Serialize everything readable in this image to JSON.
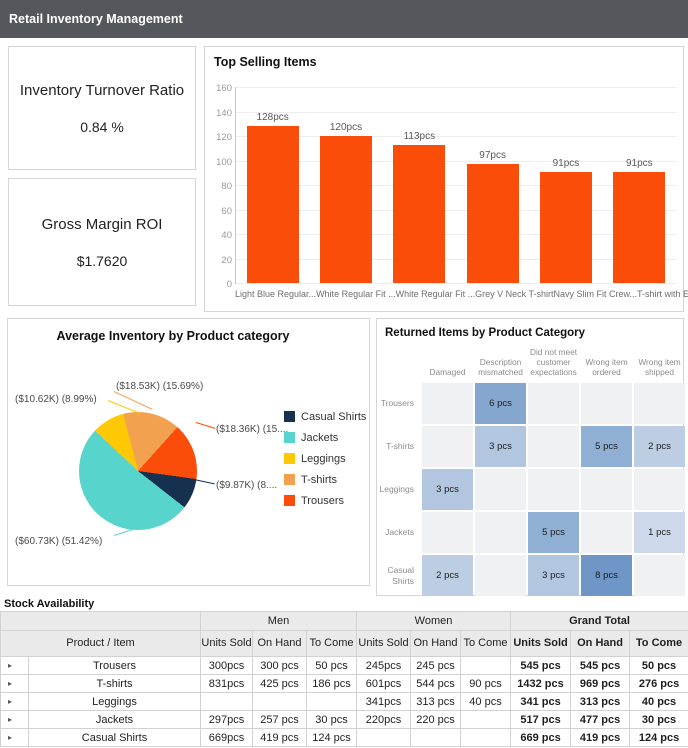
{
  "header": {
    "title": "Retail Inventory Management"
  },
  "colors": {
    "titlebar": "#54585d",
    "panel_border": "#d6d6d6"
  },
  "kpis": [
    {
      "label": "Inventory Turnover Ratio",
      "value": "0.84 %"
    },
    {
      "label": "Gross Margin ROI",
      "value": "$1.7620"
    }
  ],
  "chart_data": [
    {
      "type": "bar",
      "title": "Top Selling Items",
      "categories": [
        "Light Blue Regular...",
        "White Regular Fit ...",
        "White Regular Fit ...",
        "Grey V Neck T-shirt",
        "Navy Slim Fit Crew...",
        "T-shirt with Embro..."
      ],
      "values": [
        128,
        120,
        113,
        97,
        91,
        91
      ],
      "bar_labels": [
        "128pcs",
        "120pcs",
        "113pcs",
        "97pcs",
        "91pcs",
        "91pcs"
      ],
      "yticks": [
        "160",
        "140",
        "120",
        "100",
        "80",
        "60",
        "40",
        "20",
        "0"
      ],
      "ylim": [
        0,
        160
      ],
      "bar_color": "#fb4d0a",
      "grid": true,
      "legend": false
    },
    {
      "type": "pie",
      "title": "Average Inventory by Product category",
      "legend_position": "right",
      "slices": [
        {
          "name": "Casual Shirts",
          "color": "#16304f",
          "amount_label": "($9.87K)",
          "pct": 8.36,
          "callout": "($9.87K) (8...."
        },
        {
          "name": "Jackets",
          "color": "#57d4cb",
          "amount_label": "($60.73K)",
          "pct": 51.42,
          "callout": "($60.73K) (51.42%)"
        },
        {
          "name": "Leggings",
          "color": "#fec804",
          "amount_label": "($10.62K)",
          "pct": 8.99,
          "callout": "($10.62K) (8.99%)"
        },
        {
          "name": "T-shirts",
          "color": "#f2a14f",
          "amount_label": "($18.53K)",
          "pct": 15.69,
          "callout": "($18.53K) (15.69%)"
        },
        {
          "name": "Trousers",
          "color": "#fb4d0a",
          "amount_label": "($18.36K)",
          "pct": 15.54,
          "callout": "($18.36K) (15...."
        }
      ],
      "draw_order": [
        "Jackets",
        "Leggings",
        "T-shirts",
        "Trousers",
        "Casual Shirts"
      ],
      "start_angle_deg": 128
    },
    {
      "type": "heatmap",
      "title": "Returned Items by Product Category",
      "columns": [
        "Damaged",
        "Description mismatched",
        "Did not meet customer expectations",
        "Wrong item ordered",
        "Wrong item shipped"
      ],
      "rows": [
        "Trousers",
        "T-shirts",
        "Leggings",
        "Jackets",
        "Casual Shirts"
      ],
      "cells": [
        {
          "row": 0,
          "col": 1,
          "value": 6,
          "label": "6 pcs"
        },
        {
          "row": 1,
          "col": 1,
          "value": 3,
          "label": "3 pcs"
        },
        {
          "row": 1,
          "col": 3,
          "value": 5,
          "label": "5 pcs"
        },
        {
          "row": 1,
          "col": 4,
          "value": 2,
          "label": "2 pcs"
        },
        {
          "row": 2,
          "col": 0,
          "value": 3,
          "label": "3 pcs"
        },
        {
          "row": 3,
          "col": 2,
          "value": 5,
          "label": "5 pcs"
        },
        {
          "row": 3,
          "col": 4,
          "value": 1,
          "label": "1 pcs"
        },
        {
          "row": 4,
          "col": 0,
          "value": 2,
          "label": "2 pcs"
        },
        {
          "row": 4,
          "col": 2,
          "value": 3,
          "label": "3 pcs"
        },
        {
          "row": 4,
          "col": 3,
          "value": 8,
          "label": "8 pcs"
        }
      ],
      "value_colors": {
        "1": "#cdd9eb",
        "2": "#bccde4",
        "3": "#b2c6e0",
        "5": "#8fafd4",
        "6": "#85a7cf",
        "8": "#6e96c6"
      },
      "empty_color": "#eff1f3"
    },
    {
      "type": "table",
      "title": "Stock Availability",
      "row_header": "Product / Item",
      "expand_glyph": "▸",
      "col_groups": [
        "Men",
        "Women",
        "Grand Total"
      ],
      "sub_columns": [
        "Units Sold",
        "On Hand",
        "To Come"
      ],
      "rows": [
        {
          "item": "Trousers",
          "men": [
            "300pcs",
            "300 pcs",
            "50 pcs"
          ],
          "women": [
            "245pcs",
            "245 pcs",
            ""
          ],
          "grand_total": [
            "545 pcs",
            "545 pcs",
            "50 pcs"
          ]
        },
        {
          "item": "T-shirts",
          "men": [
            "831pcs",
            "425 pcs",
            "186 pcs"
          ],
          "women": [
            "601pcs",
            "544 pcs",
            "90 pcs"
          ],
          "grand_total": [
            "1432 pcs",
            "969 pcs",
            "276 pcs"
          ]
        },
        {
          "item": "Leggings",
          "men": [
            "",
            "",
            ""
          ],
          "women": [
            "341pcs",
            "313 pcs",
            "40 pcs"
          ],
          "grand_total": [
            "341 pcs",
            "313 pcs",
            "40 pcs"
          ]
        },
        {
          "item": "Jackets",
          "men": [
            "297pcs",
            "257 pcs",
            "30 pcs"
          ],
          "women": [
            "220pcs",
            "220 pcs",
            ""
          ],
          "grand_total": [
            "517 pcs",
            "477 pcs",
            "30 pcs"
          ]
        },
        {
          "item": "Casual Shirts",
          "men": [
            "669pcs",
            "419 pcs",
            "124 pcs"
          ],
          "women": [
            "",
            "",
            ""
          ],
          "grand_total": [
            "669 pcs",
            "419 pcs",
            "124 pcs"
          ]
        }
      ]
    }
  ]
}
